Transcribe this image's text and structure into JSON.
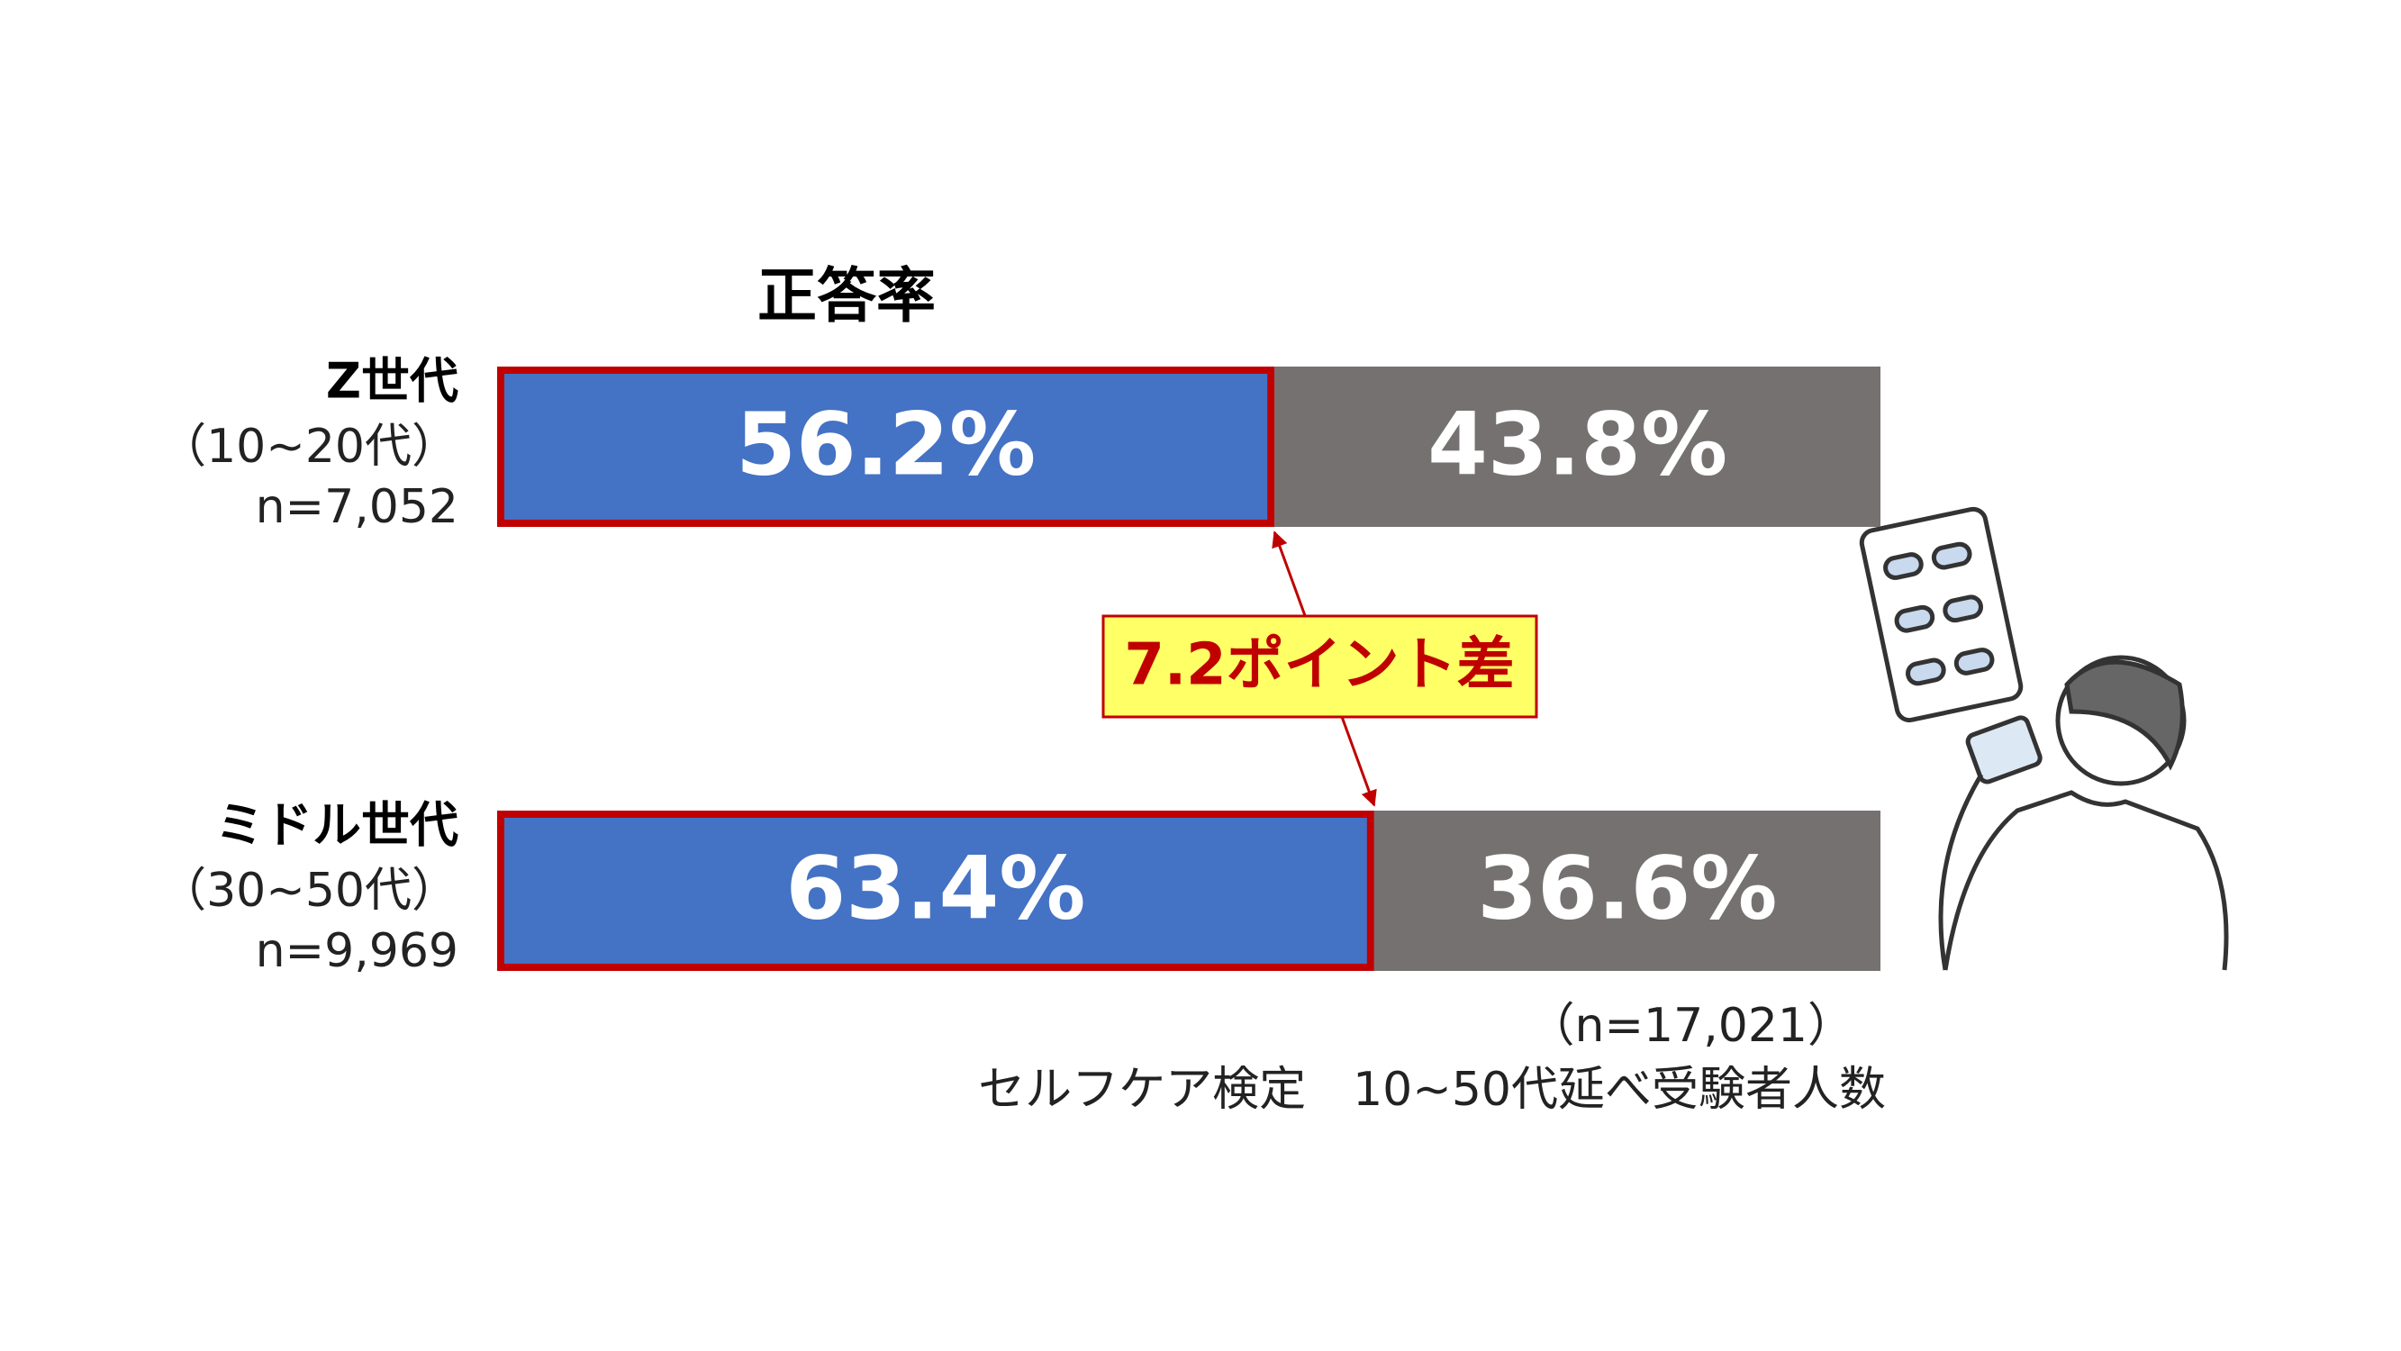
{
  "chart_data": {
    "type": "stacked-bar-horizontal",
    "title": "正答率",
    "categories": [
      "Z世代",
      "ミドル世代"
    ],
    "category_sublabels": [
      [
        "（10~20代）",
        "n=7,052"
      ],
      [
        "（30~50代）",
        "n=9,969"
      ]
    ],
    "xlim": [
      0,
      100
    ],
    "highlight_color": "#c00000",
    "series": [
      {
        "color": "#4472c4",
        "values": [
          56.2,
          63.4
        ],
        "value_labels": [
          "56.2%",
          "63.4%"
        ]
      },
      {
        "color": "#767171",
        "values": [
          43.8,
          36.6
        ],
        "value_labels": [
          "43.8%",
          "36.6%"
        ]
      }
    ],
    "annotation": "7.2ポイント差",
    "notes": [
      "（n=17,021）",
      "セルフケア検定　10~50代延べ受験者人数"
    ]
  }
}
